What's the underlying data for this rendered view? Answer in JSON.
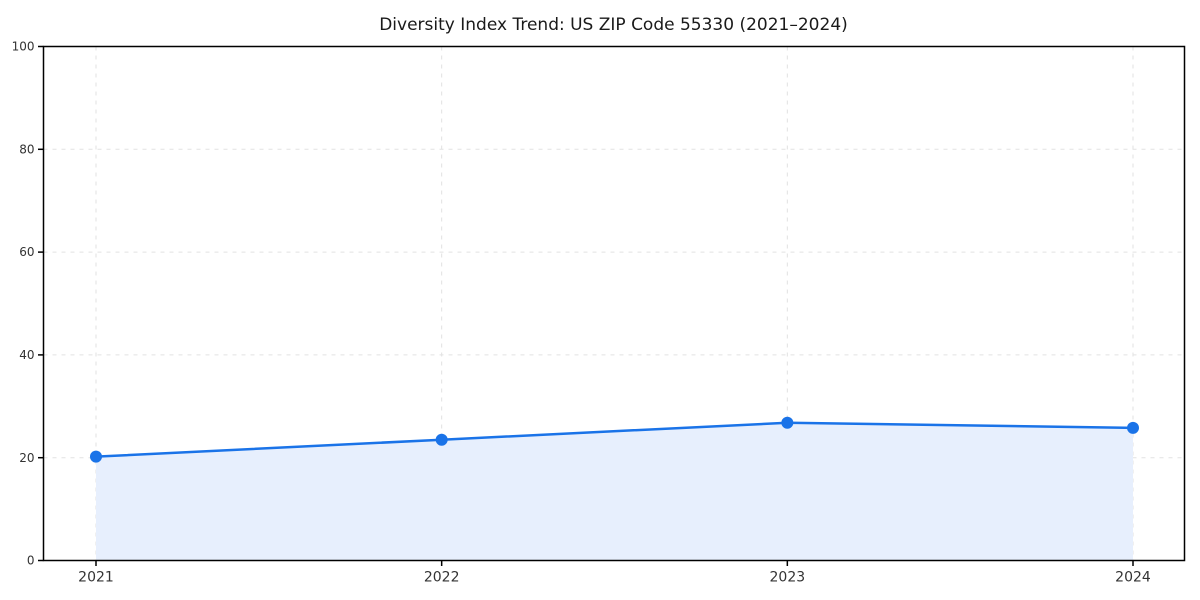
{
  "chart_data": {
    "type": "area",
    "title": "Diversity Index Trend: US ZIP Code 55330 (2021–2024)",
    "categories": [
      "2021",
      "2022",
      "2023",
      "2024"
    ],
    "values": [
      20.2,
      23.5,
      26.8,
      25.8
    ],
    "xlabel": "",
    "ylabel": "",
    "ylim": [
      0,
      100
    ],
    "y_ticks": [
      0,
      20,
      40,
      60,
      80,
      100
    ],
    "x_ticks": [
      "2021",
      "2022",
      "2023",
      "2024"
    ],
    "grid": "dashed",
    "legend_position": "none",
    "colors": {
      "line": "#1a73e8",
      "marker": "#1a73e8",
      "area_fill": "#e7effd",
      "grid": "#e2e2e2",
      "spine": "#000000",
      "tick_label": "#333333",
      "title": "#1a1a1a",
      "background": "#ffffff"
    }
  }
}
